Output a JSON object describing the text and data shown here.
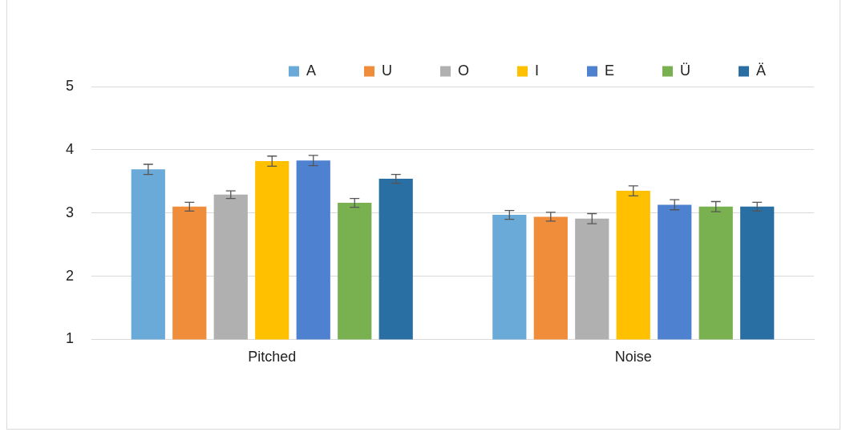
{
  "chart_data": {
    "type": "bar",
    "categories": [
      "Pitched",
      "Noise"
    ],
    "series": [
      {
        "name": "A",
        "color": "#6aaad9",
        "values": [
          3.69,
          2.97
        ],
        "errors": [
          0.08,
          0.07
        ]
      },
      {
        "name": "U",
        "color": "#ef8d3b",
        "values": [
          3.1,
          2.94
        ],
        "errors": [
          0.07,
          0.07
        ]
      },
      {
        "name": "O",
        "color": "#b0b0b0",
        "values": [
          3.29,
          2.91
        ],
        "errors": [
          0.06,
          0.08
        ]
      },
      {
        "name": "I",
        "color": "#ffc000",
        "values": [
          3.82,
          3.35
        ],
        "errors": [
          0.08,
          0.08
        ]
      },
      {
        "name": "E",
        "color": "#4f81d1",
        "values": [
          3.83,
          3.13
        ],
        "errors": [
          0.08,
          0.08
        ]
      },
      {
        "name": "Ü",
        "color": "#79b050",
        "values": [
          3.16,
          3.1
        ],
        "errors": [
          0.07,
          0.08
        ]
      },
      {
        "name": "Ä",
        "color": "#2a6fa3",
        "values": [
          3.54,
          3.1
        ],
        "errors": [
          0.07,
          0.07
        ]
      }
    ],
    "ylim": [
      1,
      5
    ],
    "yticks": [
      1,
      2,
      3,
      4,
      5
    ],
    "grid": "y",
    "legend": "top right"
  }
}
